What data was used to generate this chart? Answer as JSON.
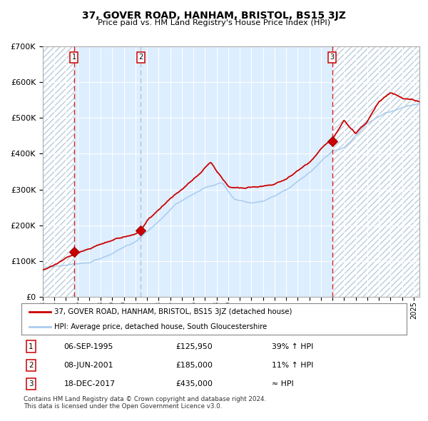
{
  "title": "37, GOVER ROAD, HANHAM, BRISTOL, BS15 3JZ",
  "subtitle": "Price paid vs. HM Land Registry's House Price Index (HPI)",
  "legend_line1": "37, GOVER ROAD, HANHAM, BRISTOL, BS15 3JZ (detached house)",
  "legend_line2": "HPI: Average price, detached house, South Gloucestershire",
  "transactions": [
    {
      "num": 1,
      "date": "06-SEP-1995",
      "price": 125950,
      "hpi": "39% ↑ HPI",
      "year": 1995.68
    },
    {
      "num": 2,
      "date": "08-JUN-2001",
      "price": 185000,
      "hpi": "11% ↑ HPI",
      "year": 2001.44
    },
    {
      "num": 3,
      "date": "18-DEC-2017",
      "price": 435000,
      "hpi": "≈ HPI",
      "year": 2017.96
    }
  ],
  "footnote1": "Contains HM Land Registry data © Crown copyright and database right 2024.",
  "footnote2": "This data is licensed under the Open Government Licence v3.0.",
  "ylim": [
    0,
    700000
  ],
  "xlim_start": 1993.0,
  "xlim_end": 2025.5,
  "red_color": "#cc0000",
  "blue_color": "#aaccee",
  "marker_color": "#cc0000",
  "bg_plot": "#ddeeff",
  "hatch_color": "#bbccdd",
  "grid_color": "#ffffff"
}
